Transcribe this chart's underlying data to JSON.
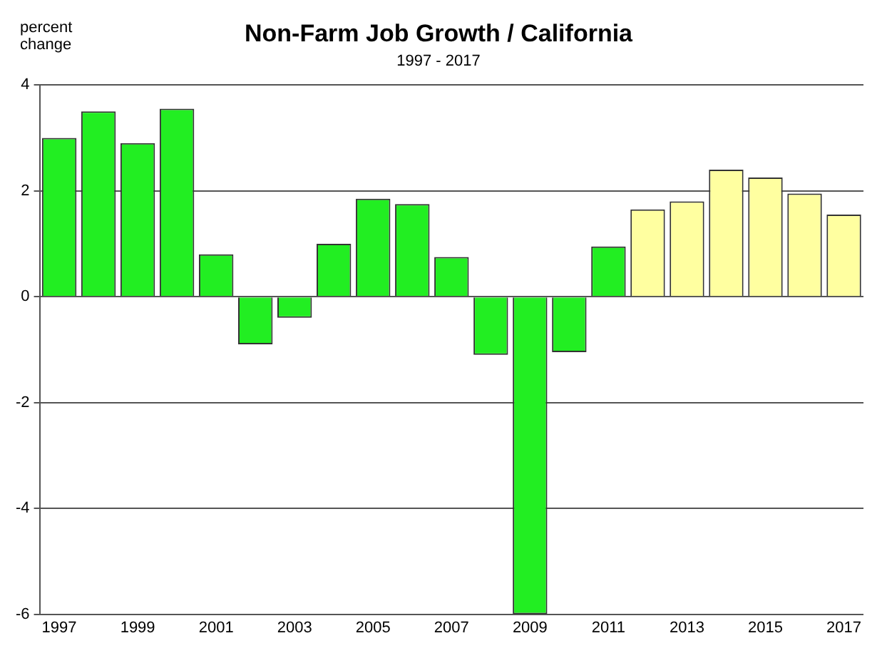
{
  "chart_data": {
    "type": "bar",
    "title": "Non-Farm Job Growth / California",
    "subtitle": "1997 - 2017",
    "ylabel": "percent\nchange",
    "categories": [
      "1997",
      null,
      "1999",
      null,
      "2001",
      null,
      "2003",
      null,
      "2005",
      null,
      "2007",
      null,
      "2009",
      null,
      "2011",
      null,
      "2013",
      null,
      "2015",
      null,
      "2017"
    ],
    "values": [
      3.0,
      3.5,
      2.9,
      3.55,
      0.8,
      -0.9,
      -0.4,
      1.0,
      1.85,
      1.75,
      0.75,
      -1.1,
      -6.0,
      -1.05,
      0.95,
      1.65,
      1.8,
      2.4,
      2.25,
      1.95,
      1.55
    ],
    "colors": [
      "#22ee22",
      "#22ee22",
      "#22ee22",
      "#22ee22",
      "#22ee22",
      "#22ee22",
      "#22ee22",
      "#22ee22",
      "#22ee22",
      "#22ee22",
      "#22ee22",
      "#22ee22",
      "#22ee22",
      "#22ee22",
      "#22ee22",
      "#ffffa0",
      "#ffffa0",
      "#ffffa0",
      "#ffffa0",
      "#ffffa0",
      "#ffffa0"
    ],
    "ylim": [
      -6,
      4
    ],
    "yticks": [
      -6,
      -4,
      -2,
      0,
      2,
      4
    ],
    "grid": "y",
    "legend": false
  }
}
